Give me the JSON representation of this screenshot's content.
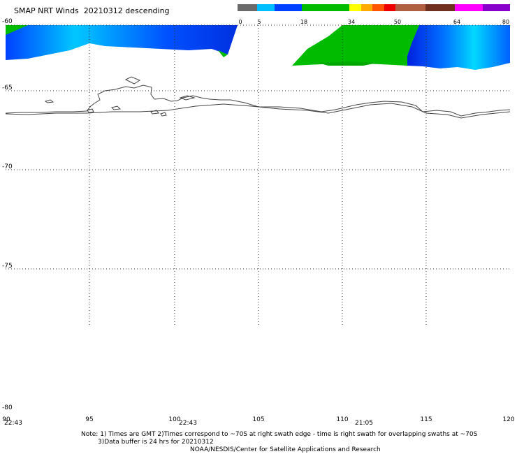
{
  "title": "SMAP NRT Winds  20210312 descending",
  "colorbar": {
    "labels": [
      "0",
      "5",
      "18",
      "34",
      "50",
      "64",
      "80"
    ],
    "segments": [
      {
        "from": 0,
        "to": 5,
        "color": "#6a6a6a"
      },
      {
        "from": 5,
        "to": 10,
        "color": "#00bfff"
      },
      {
        "from": 10,
        "to": 18,
        "color": "#0040ff"
      },
      {
        "from": 18,
        "to": 34,
        "color": "#00bb00"
      },
      {
        "from": 34,
        "to": 38,
        "color": "#ffff00"
      },
      {
        "from": 38,
        "to": 42,
        "color": "#ffaa00"
      },
      {
        "from": 42,
        "to": 46,
        "color": "#ff5500"
      },
      {
        "from": 46,
        "to": 50,
        "color": "#ee0000"
      },
      {
        "from": 50,
        "to": 57,
        "color": "#b06040"
      },
      {
        "from": 57,
        "to": 64,
        "color": "#703020"
      },
      {
        "from": 64,
        "to": 72,
        "color": "#ff00ff"
      },
      {
        "from": 72,
        "to": 80,
        "color": "#8800cc"
      }
    ]
  },
  "lat_labels": [
    "-60",
    "-65",
    "-70",
    "-75",
    "-80"
  ],
  "lon_labels": [
    "90",
    "95",
    "100",
    "105",
    "110",
    "115",
    "120"
  ],
  "times": [
    "22:43",
    "22:43",
    "21:05"
  ],
  "notes": [
    "Note: 1) Times are GMT 2)Times correspond to ~70S at right swath edge - time is right swath for overlapping swaths at ~70S",
    "3)Data buffer is 24 hrs for 20210312",
    "NOAA/NESDIS/Center for Satellite Applications and Research"
  ],
  "colors": {
    "coast": "#444444",
    "grid": "#333333",
    "low_wind": "#0040ff",
    "light_wind": "#00e0ff",
    "moderate_wind": "#00bb00"
  }
}
